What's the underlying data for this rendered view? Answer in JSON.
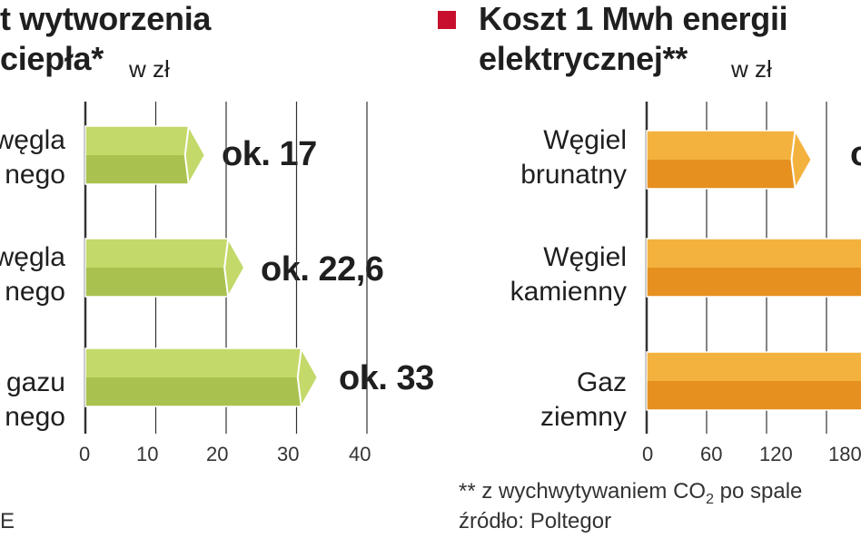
{
  "left_chart": {
    "title_line1": "t wytworzenia",
    "title_line2": "ciepła*",
    "unit": "w zł",
    "bar_color": "#c3d96a",
    "bar_dark": "#a9c24f",
    "source_fragment": "E"
  },
  "right_chart": {
    "title_line1": "Koszt 1 Mwh energii",
    "title_line2": "elektrycznej**",
    "unit": "w zł",
    "marker_color": "#c8102e",
    "bar_color": "#f3b23e",
    "bar_dark": "#e6901f",
    "footnote_prefix": "** z wychwytywaniem CO",
    "footnote_sub": "2",
    "footnote_suffix": " po spale",
    "source": "źródło:  Poltegor"
  },
  "chart_data": [
    {
      "type": "bar",
      "orientation": "horizontal",
      "title": "t wytworzenia ciepła*",
      "unit": "w zł",
      "categories": [
        [
          "węgla",
          "nego"
        ],
        [
          "węgla",
          "nego"
        ],
        [
          "gazu",
          "nego"
        ]
      ],
      "values": [
        17,
        22.6,
        33
      ],
      "value_labels": [
        "ok. 17",
        "ok. 22,6",
        "ok. 33"
      ],
      "xlim": [
        0,
        40
      ],
      "ticks": [
        "0",
        "10",
        "20",
        "30",
        "40"
      ],
      "grid": true
    },
    {
      "type": "bar",
      "orientation": "horizontal",
      "title": "Koszt 1 Mwh energii elektrycznej**",
      "unit": "w zł",
      "categories": [
        [
          "Węgiel",
          "brunatny"
        ],
        [
          "Węgiel",
          "kamienny"
        ],
        [
          "Gaz",
          "ziemny"
        ]
      ],
      "values": [
        165,
        240,
        250
      ],
      "value_labels": [
        "o",
        "",
        ""
      ],
      "xlim": [
        0,
        240
      ],
      "ticks": [
        "0",
        "60",
        "120",
        "180"
      ],
      "grid": true
    }
  ]
}
